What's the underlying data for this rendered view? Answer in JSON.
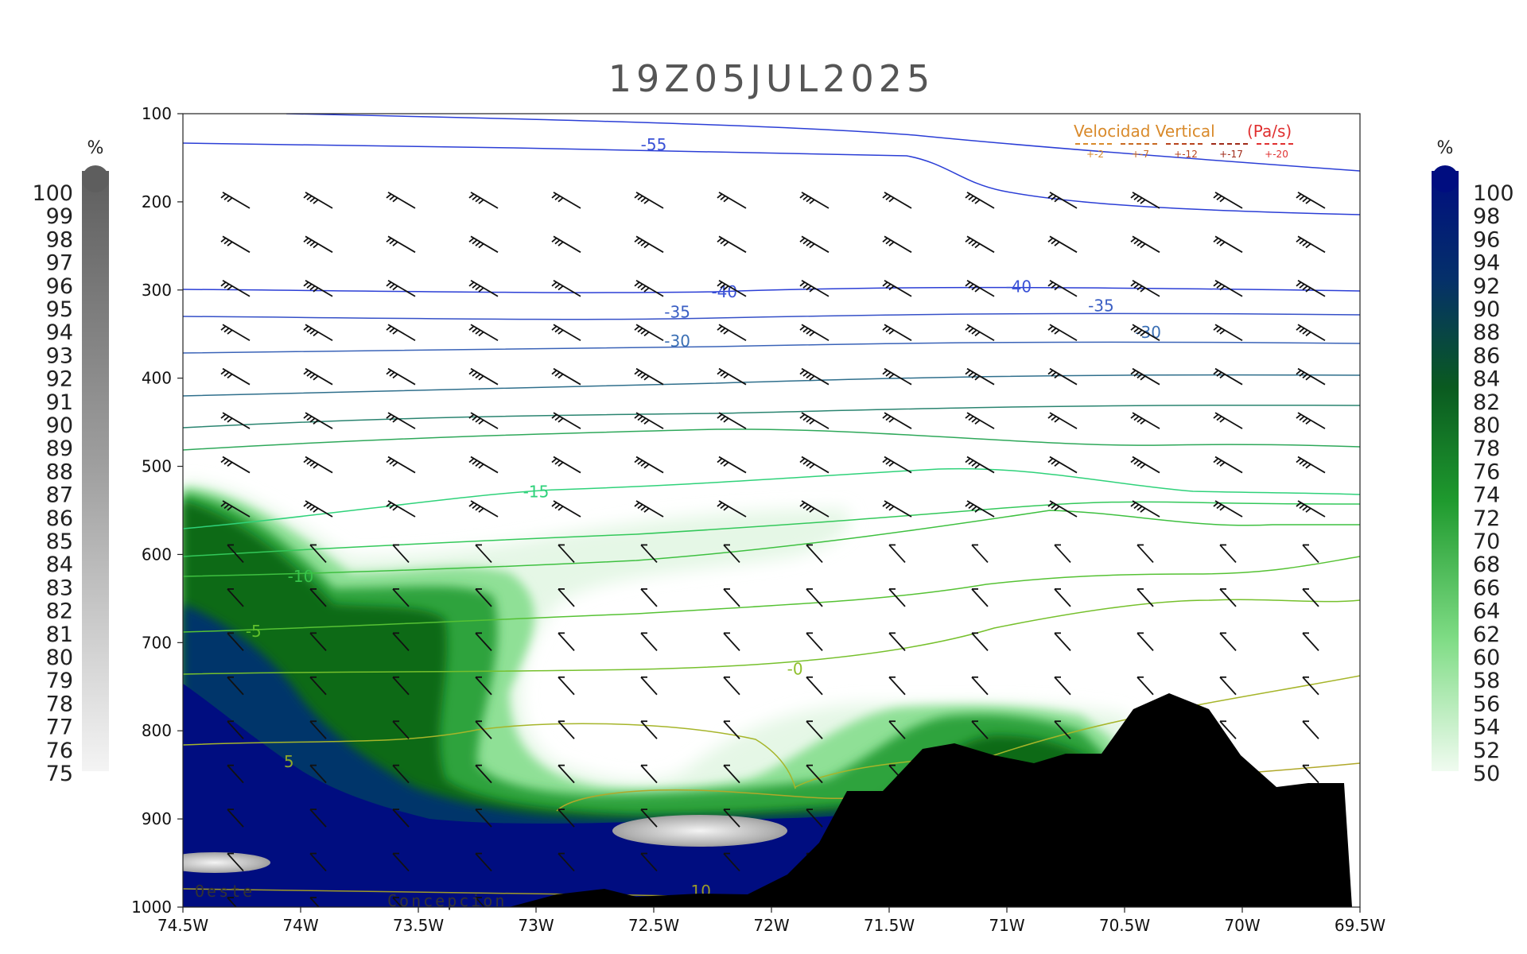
{
  "chart_data": {
    "type": "cross-section",
    "title": "19Z05JUL2025",
    "x_ticks": [
      "74.5W",
      "74W",
      "73.5W",
      "73W",
      "72.5W",
      "72W",
      "71.5W",
      "71W",
      "70.5W",
      "70W",
      "69.5W"
    ],
    "x_range": [
      -74.5,
      -69.5
    ],
    "y_ticks": [
      100,
      200,
      300,
      400,
      500,
      600,
      700,
      800,
      900,
      1000
    ],
    "y_range": [
      100,
      1000
    ],
    "left_colorbar": {
      "unit": "%",
      "labels": [
        "100",
        "99",
        "98",
        "97",
        "96",
        "95",
        "94",
        "93",
        "92",
        "91",
        "90",
        "89",
        "88",
        "87",
        "86",
        "85",
        "84",
        "83",
        "82",
        "81",
        "80",
        "79",
        "78",
        "77",
        "76",
        "75"
      ]
    },
    "right_colorbar": {
      "unit": "%",
      "labels": [
        "100",
        "98",
        "96",
        "94",
        "92",
        "90",
        "88",
        "86",
        "84",
        "82",
        "80",
        "78",
        "76",
        "74",
        "72",
        "70",
        "68",
        "66",
        "64",
        "62",
        "60",
        "58",
        "56",
        "54",
        "52",
        "50"
      ]
    },
    "vertical_velocity_legend": {
      "title": "Velocidad Vertical",
      "unit": "(Pa/s)",
      "items": [
        "+-2",
        "+-7",
        "+-12",
        "+-17",
        "+-20"
      ],
      "colors": [
        "#d98a2b",
        "#c96a22",
        "#b8431c",
        "#a02a18",
        "#e03030"
      ]
    },
    "contour_labels": [
      {
        "text": "-55",
        "lon": -72.5,
        "p": 135,
        "color": "#3a52d6"
      },
      {
        "text": "-40",
        "lon": -72.2,
        "p": 302,
        "color": "#3a52d6"
      },
      {
        "text": "-40",
        "lon": -70.95,
        "p": 296,
        "color": "#3a52d6"
      },
      {
        "text": "-35",
        "lon": -72.4,
        "p": 325,
        "color": "#3b5fc4"
      },
      {
        "text": "-35",
        "lon": -70.6,
        "p": 318,
        "color": "#3b5fc4"
      },
      {
        "text": "-30",
        "lon": -72.4,
        "p": 358,
        "color": "#3b6fb4"
      },
      {
        "text": "-30",
        "lon": -70.4,
        "p": 348,
        "color": "#3b6fb4"
      },
      {
        "text": "-15",
        "lon": -73.0,
        "p": 529,
        "color": "#2ed27a"
      },
      {
        "text": "-10",
        "lon": -74.0,
        "p": 625,
        "color": "#36c44a"
      },
      {
        "text": "-5",
        "lon": -74.2,
        "p": 687,
        "color": "#5fbf2c"
      },
      {
        "text": "-0",
        "lon": -71.9,
        "p": 730,
        "color": "#8fbf2c"
      },
      {
        "text": "5",
        "lon": -74.05,
        "p": 835,
        "color": "#8fa82a"
      },
      {
        "text": "10",
        "lon": -72.3,
        "p": 982,
        "color": "#9a9a28"
      }
    ],
    "place_labels": [
      "Oeste",
      "Concepcion"
    ],
    "colors": {
      "cloud_dark": "#000a7a",
      "cloud_green": "#1f9a2e",
      "cloud_light": "#e9f8e9",
      "gray": "#9a9a9a",
      "terrain": "#000000"
    }
  }
}
